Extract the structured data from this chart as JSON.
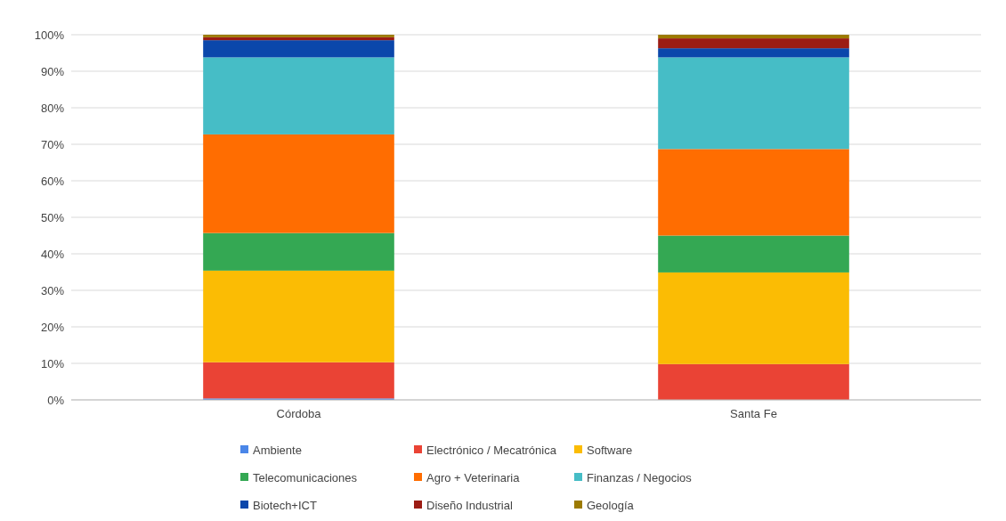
{
  "chart_data": {
    "type": "bar",
    "stacked": true,
    "categories": [
      "Córdoba",
      "Santa Fe"
    ],
    "series": [
      {
        "name": "Ambiente",
        "color": "#4a86e8",
        "values": [
          0.4,
          0
        ]
      },
      {
        "name": "Electrónico / Mecatrónica",
        "color": "#ea4335",
        "values": [
          9.9,
          9.8
        ]
      },
      {
        "name": "Software",
        "color": "#fbbc04",
        "values": [
          25.1,
          25.1
        ]
      },
      {
        "name": "Telecomunicaciones",
        "color": "#34a853",
        "values": [
          10.3,
          10.1
        ]
      },
      {
        "name": "Agro + Veterinaria",
        "color": "#ff6d01",
        "values": [
          27,
          23.7
        ]
      },
      {
        "name": "Finanzas / Negocios",
        "color": "#46bdc6",
        "values": [
          21.1,
          25.1
        ]
      },
      {
        "name": "Biotech+ICT",
        "color": "#0b47ab",
        "values": [
          4.7,
          2.5
        ]
      },
      {
        "name": "Diseño Industrial",
        "color": "#9c1c14",
        "values": [
          0.8,
          2.7
        ]
      },
      {
        "name": "Geología",
        "color": "#9c7a00",
        "values": [
          0.7,
          1.0
        ]
      }
    ],
    "ylim": [
      0,
      100
    ],
    "yticks": [
      {
        "value": 0,
        "label": "0%"
      },
      {
        "value": 10,
        "label": "10%"
      },
      {
        "value": 20,
        "label": "20%"
      },
      {
        "value": 30,
        "label": "30%"
      },
      {
        "value": 40,
        "label": "40%"
      },
      {
        "value": 50,
        "label": "50%"
      },
      {
        "value": 60,
        "label": "60%"
      },
      {
        "value": 70,
        "label": "70%"
      },
      {
        "value": 80,
        "label": "80%"
      },
      {
        "value": 90,
        "label": "90%"
      },
      {
        "value": 100,
        "label": "100%"
      }
    ],
    "grid": "y",
    "legend": "bottom"
  }
}
